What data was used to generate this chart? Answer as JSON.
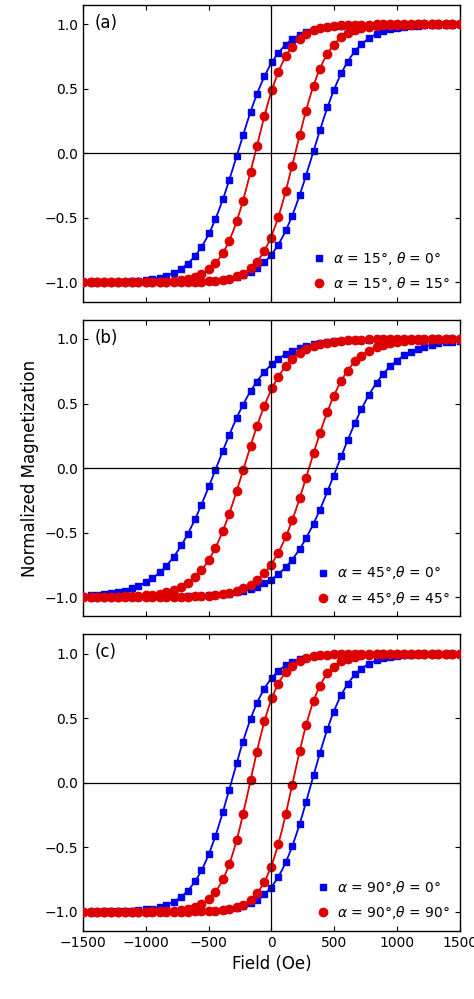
{
  "panels": [
    {
      "label": "(a)",
      "blue_label": "$\\alpha$ = 15°, $\\theta$ = 0°",
      "red_label": "$\\alpha$ = 15°, $\\theta$ = 15°",
      "blue_Hc": 300,
      "blue_Heb": 30,
      "blue_slope": 0.0032,
      "red_Hc": 160,
      "red_Heb": 30,
      "red_slope": 0.004
    },
    {
      "label": "(b)",
      "blue_label": "$\\alpha$ = 45°,$\\theta$ = 0°",
      "red_label": "$\\alpha$ = 45°,$\\theta$ = 45°",
      "blue_Hc": 480,
      "blue_Heb": 40,
      "blue_slope": 0.0025,
      "red_Hc": 260,
      "red_Heb": 40,
      "red_slope": 0.0032
    },
    {
      "label": "(c)",
      "blue_label": "$\\alpha$ = 90°,$\\theta$ = 0°",
      "red_label": "$\\alpha$ = 90°,$\\theta$ = 90°",
      "blue_Hc": 320,
      "blue_Heb": 0,
      "blue_slope": 0.0035,
      "red_Hc": 170,
      "red_Heb": 0,
      "red_slope": 0.0045
    }
  ],
  "xlim": [
    -1500,
    1500
  ],
  "ylim": [
    -1.15,
    1.15
  ],
  "yticks": [
    -1,
    -0.5,
    0,
    0.5,
    1
  ],
  "xticks": [
    -1500,
    -1000,
    -500,
    0,
    500,
    1000,
    1500
  ],
  "blue_color": "#0000EE",
  "red_color": "#DD0000",
  "marker_blue": "s",
  "marker_red": "o",
  "markersize_blue": 5,
  "markersize_red": 6,
  "linewidth": 1.3,
  "ylabel": "Normalized Magnetization",
  "xlabel": "Field (Oe)",
  "legend_fontsize": 10,
  "tick_fontsize": 10,
  "label_fontsize": 12
}
